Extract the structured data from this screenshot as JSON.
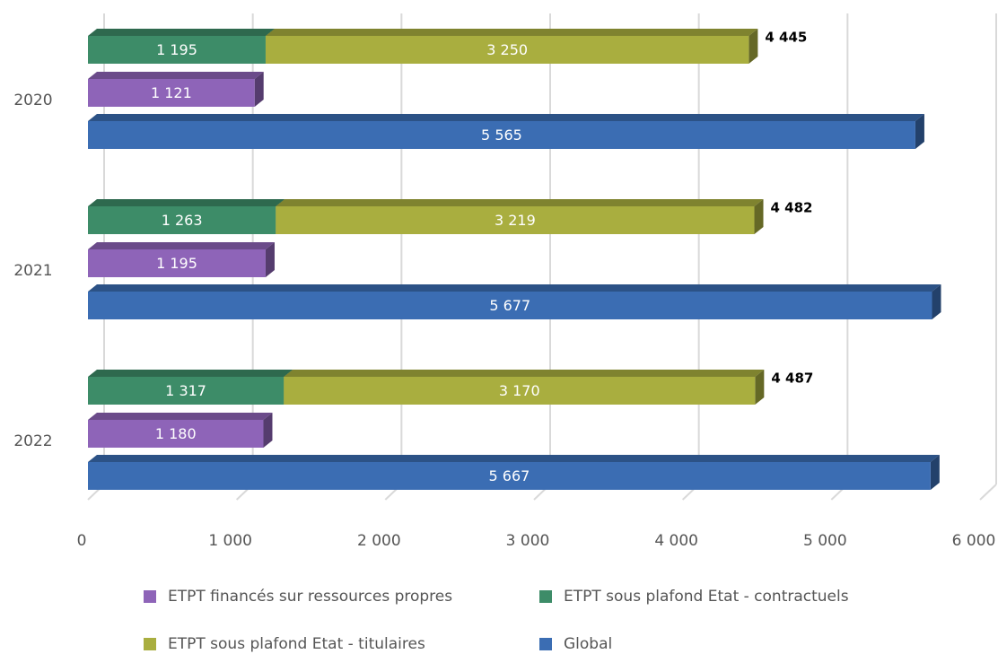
{
  "chart_data": {
    "type": "bar",
    "orientation": "horizontal",
    "categories": [
      "2020",
      "2021",
      "2022"
    ],
    "series": [
      {
        "name": "ETPT financés sur ressources propres",
        "color": "#8e64b8",
        "values": [
          1121,
          1195,
          1180
        ],
        "value_labels": [
          "1 121",
          "1 195",
          "1 180"
        ]
      },
      {
        "name": "ETPT sous plafond Etat - contractuels",
        "color": "#3d8c68",
        "values": [
          1195,
          1263,
          1317
        ],
        "value_labels": [
          "1 195",
          "1 263",
          "1 317"
        ],
        "stack": true
      },
      {
        "name": "ETPT sous plafond Etat - titulaires",
        "color": "#a9ae3f",
        "values": [
          3250,
          3219,
          3170
        ],
        "value_labels": [
          "3 250",
          "3 219",
          "3 170"
        ],
        "stack": true
      },
      {
        "name": "Global",
        "color": "#3b6db3",
        "values": [
          5565,
          5677,
          5667
        ],
        "value_labels": [
          "5 565",
          "5 677",
          "5 667"
        ]
      }
    ],
    "totals": {
      "values": [
        4445,
        4482,
        4487
      ],
      "value_labels": [
        "4 445",
        "4 482",
        "4 487"
      ]
    },
    "xlim": [
      0,
      6000
    ],
    "xticks": [
      0,
      {
        "value": 1000,
        "label": "1 000"
      },
      {
        "value": 2000,
        "label": "2 000"
      },
      {
        "value": 3000,
        "label": "3 000"
      },
      {
        "value": 4000,
        "label": "4 000"
      },
      {
        "value": 5000,
        "label": "5 000"
      },
      {
        "value": 6000,
        "label": "6 000"
      }
    ],
    "grid": true
  }
}
